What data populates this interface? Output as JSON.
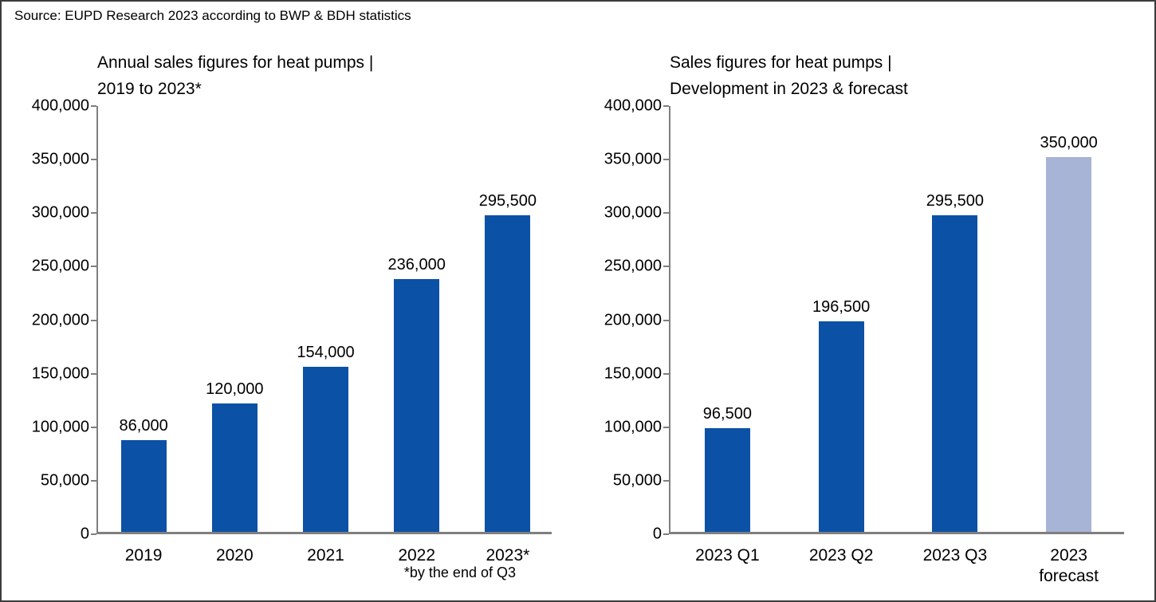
{
  "source": "Source: EUPD Research 2023 according to BWP & BDH statistics",
  "colors": {
    "bar_primary": "#0B51A6",
    "bar_forecast": "#A7B4D5",
    "axis": "#7F7F7F",
    "border": "#3C3C3C",
    "text": "#000000"
  },
  "chart_data": [
    {
      "type": "bar",
      "title": "Annual sales figures for heat pumps |\n2019 to 2023*",
      "categories": [
        "2019",
        "2020",
        "2021",
        "2022",
        "2023*"
      ],
      "values": [
        86000,
        120000,
        154000,
        236000,
        295500
      ],
      "value_labels": [
        "86,000",
        "120,000",
        "154,000",
        "236,000",
        "295,500"
      ],
      "bar_styles": [
        "primary",
        "primary",
        "primary",
        "primary",
        "primary"
      ],
      "xlabel": "",
      "ylabel": "",
      "ylim": [
        0,
        400000
      ],
      "ytick_step": 50000,
      "ytick_labels": [
        "0",
        "50,000",
        "100,000",
        "150,000",
        "200,000",
        "250,000",
        "300,000",
        "350,000",
        "400,000"
      ],
      "grid": false,
      "legend": "none",
      "footnote": "*by the end of Q3"
    },
    {
      "type": "bar",
      "title": "Sales figures for heat pumps |\nDevelopment in 2023 & forecast",
      "categories": [
        "2023 Q1",
        "2023 Q2",
        "2023 Q3",
        "2023\nforecast"
      ],
      "values": [
        96500,
        196500,
        295500,
        350000
      ],
      "value_labels": [
        "96,500",
        "196,500",
        "295,500",
        "350,000"
      ],
      "bar_styles": [
        "primary",
        "primary",
        "primary",
        "forecast"
      ],
      "xlabel": "",
      "ylabel": "",
      "ylim": [
        0,
        400000
      ],
      "ytick_step": 50000,
      "ytick_labels": [
        "0",
        "50,000",
        "100,000",
        "150,000",
        "200,000",
        "250,000",
        "300,000",
        "350,000",
        "400,000"
      ],
      "grid": false,
      "legend": "none",
      "footnote": ""
    }
  ]
}
